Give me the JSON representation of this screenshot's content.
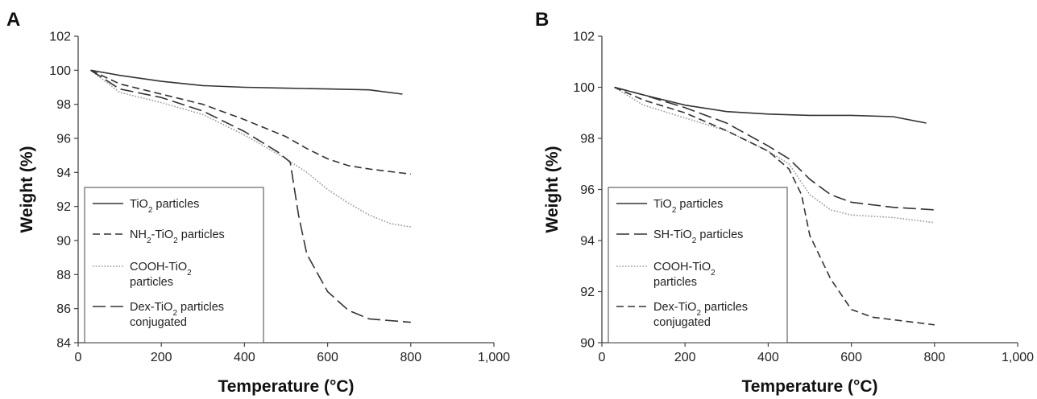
{
  "chart_data": [
    {
      "type": "line",
      "panel_label": "A",
      "xlabel": "Temperature (°C)",
      "ylabel": "Weight (%)",
      "xlim": [
        0,
        1000
      ],
      "ylim": [
        84,
        102
      ],
      "xticks": [
        0,
        200,
        400,
        600,
        800,
        1000
      ],
      "xtick_labels": [
        "0",
        "200",
        "400",
        "600",
        "800",
        "1,000"
      ],
      "yticks": [
        84,
        86,
        88,
        90,
        92,
        94,
        96,
        98,
        100,
        102
      ],
      "grid": false,
      "legend_placement": "lower-left",
      "series": [
        {
          "name_parts": [
            "TiO",
            "2",
            " particles"
          ],
          "dash": "solid",
          "color": "#333333",
          "points": [
            [
              30,
              100
            ],
            [
              100,
              99.7
            ],
            [
              200,
              99.35
            ],
            [
              300,
              99.1
            ],
            [
              400,
              99.0
            ],
            [
              500,
              98.95
            ],
            [
              600,
              98.9
            ],
            [
              700,
              98.85
            ],
            [
              780,
              98.6
            ]
          ]
        },
        {
          "name_parts": [
            "NH",
            "2",
            "-TiO",
            "2",
            " particles"
          ],
          "dash": "dashed",
          "color": "#333333",
          "points": [
            [
              30,
              100
            ],
            [
              100,
              99.2
            ],
            [
              200,
              98.6
            ],
            [
              300,
              98.0
            ],
            [
              400,
              97.1
            ],
            [
              500,
              96.1
            ],
            [
              550,
              95.4
            ],
            [
              600,
              94.8
            ],
            [
              650,
              94.4
            ],
            [
              700,
              94.2
            ],
            [
              800,
              93.9
            ]
          ]
        },
        {
          "name_parts": [
            "COOH-TiO",
            "2",
            " particles"
          ],
          "dash": "dotted",
          "color": "#999999",
          "points": [
            [
              30,
              100
            ],
            [
              100,
              98.7
            ],
            [
              200,
              98.1
            ],
            [
              300,
              97.4
            ],
            [
              400,
              96.2
            ],
            [
              500,
              94.8
            ],
            [
              550,
              94.0
            ],
            [
              600,
              93.0
            ],
            [
              650,
              92.2
            ],
            [
              700,
              91.5
            ],
            [
              750,
              91.0
            ],
            [
              800,
              90.8
            ]
          ]
        },
        {
          "name_parts": [
            "Dex-TiO",
            "2",
            " particles conjugated"
          ],
          "dash": "longdash",
          "color": "#333333",
          "points": [
            [
              30,
              100
            ],
            [
              100,
              98.9
            ],
            [
              200,
              98.4
            ],
            [
              300,
              97.6
            ],
            [
              400,
              96.4
            ],
            [
              480,
              95.2
            ],
            [
              510,
              94.6
            ],
            [
              530,
              91.5
            ],
            [
              550,
              89.2
            ],
            [
              600,
              87.0
            ],
            [
              650,
              85.9
            ],
            [
              700,
              85.4
            ],
            [
              800,
              85.2
            ]
          ]
        }
      ]
    },
    {
      "type": "line",
      "panel_label": "B",
      "xlabel": "Temperature (°C)",
      "ylabel": "Weight (%)",
      "xlim": [
        0,
        1000
      ],
      "ylim": [
        90,
        102
      ],
      "xticks": [
        0,
        200,
        400,
        600,
        800,
        1000
      ],
      "xtick_labels": [
        "0",
        "200",
        "400",
        "600",
        "800",
        "1,000"
      ],
      "yticks": [
        90,
        92,
        94,
        96,
        98,
        100,
        102
      ],
      "grid": false,
      "legend_placement": "lower-left",
      "series": [
        {
          "name_parts": [
            "TiO",
            "2",
            " particles"
          ],
          "dash": "solid",
          "color": "#333333",
          "points": [
            [
              30,
              100
            ],
            [
              100,
              99.7
            ],
            [
              200,
              99.3
            ],
            [
              300,
              99.05
            ],
            [
              400,
              98.95
            ],
            [
              500,
              98.9
            ],
            [
              600,
              98.9
            ],
            [
              700,
              98.85
            ],
            [
              780,
              98.6
            ]
          ]
        },
        {
          "name_parts": [
            "SH-TiO",
            "2",
            " particles"
          ],
          "dash": "longdash",
          "color": "#333333",
          "points": [
            [
              30,
              100
            ],
            [
              100,
              99.7
            ],
            [
              200,
              99.2
            ],
            [
              300,
              98.6
            ],
            [
              400,
              97.7
            ],
            [
              450,
              97.2
            ],
            [
              500,
              96.4
            ],
            [
              550,
              95.8
            ],
            [
              600,
              95.5
            ],
            [
              700,
              95.3
            ],
            [
              800,
              95.2
            ]
          ]
        },
        {
          "name_parts": [
            "COOH-TiO",
            "2",
            " particles"
          ],
          "dash": "dotted",
          "color": "#999999",
          "points": [
            [
              30,
              100
            ],
            [
              100,
              99.3
            ],
            [
              200,
              98.8
            ],
            [
              300,
              98.3
            ],
            [
              400,
              97.5
            ],
            [
              450,
              97.0
            ],
            [
              500,
              95.8
            ],
            [
              550,
              95.2
            ],
            [
              600,
              95.0
            ],
            [
              700,
              94.9
            ],
            [
              800,
              94.7
            ]
          ]
        },
        {
          "name_parts": [
            "Dex-TiO",
            "2",
            " particles conjugated"
          ],
          "dash": "dashed",
          "color": "#333333",
          "points": [
            [
              30,
              100
            ],
            [
              100,
              99.5
            ],
            [
              200,
              99.0
            ],
            [
              300,
              98.3
            ],
            [
              400,
              97.5
            ],
            [
              450,
              96.8
            ],
            [
              480,
              95.8
            ],
            [
              500,
              94.2
            ],
            [
              550,
              92.5
            ],
            [
              600,
              91.3
            ],
            [
              650,
              91.0
            ],
            [
              700,
              90.9
            ],
            [
              800,
              90.7
            ]
          ]
        }
      ]
    }
  ]
}
